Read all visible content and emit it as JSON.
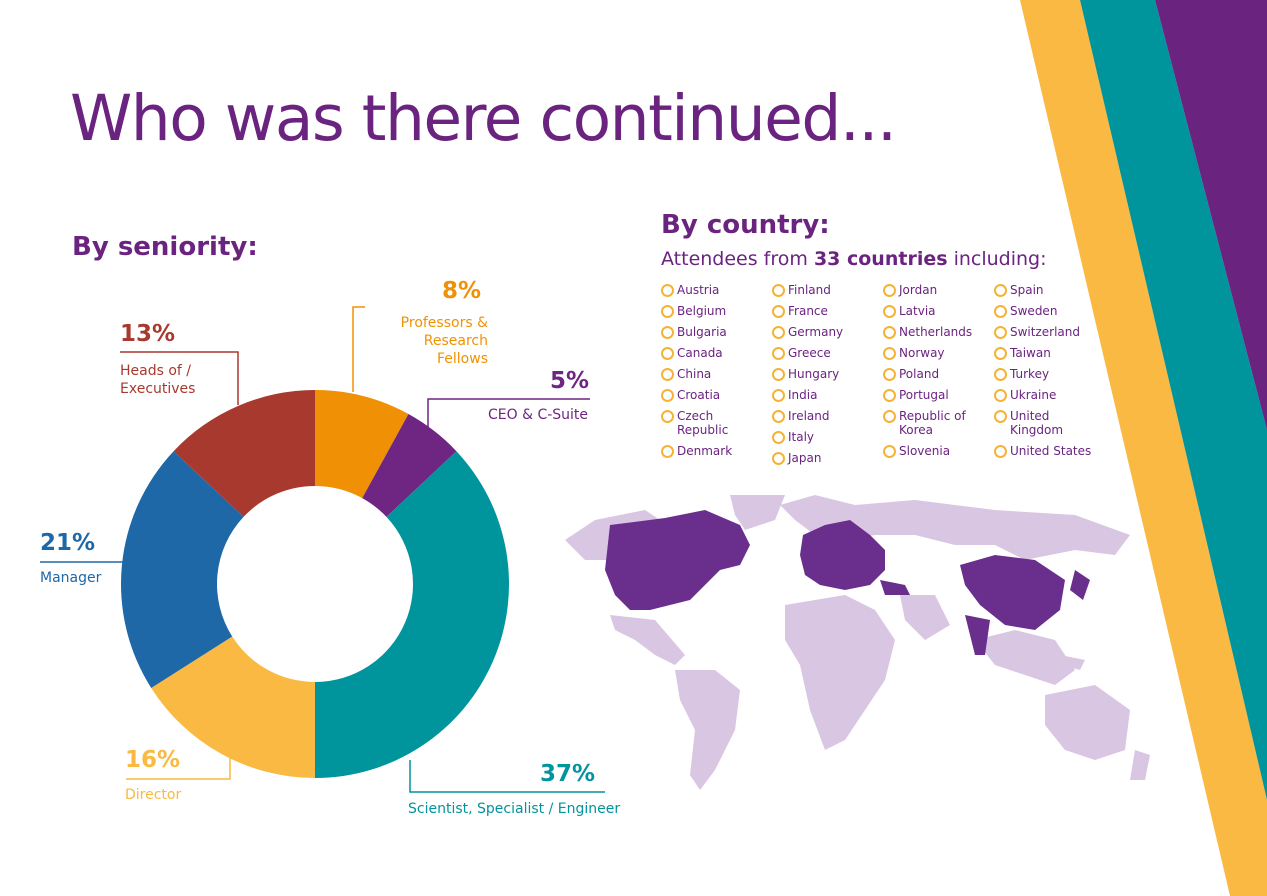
{
  "page": {
    "title": "Who was there continued...",
    "colors": {
      "purple": "#6b2380",
      "teal": "#00949c",
      "yellow": "#f9b942",
      "orange": "#f09105",
      "red": "#a8392e",
      "blue": "#1e68a8",
      "map_light": "#d9c6e2",
      "map_dark": "#6a2f8c"
    }
  },
  "seniority": {
    "heading": "By seniority:"
  },
  "chart_data": {
    "type": "pie",
    "donut": true,
    "title": "By seniority:",
    "slices": [
      {
        "label": "Professors & Research Fellows",
        "value": 8,
        "display": "8%",
        "color": "#f09105"
      },
      {
        "label": "CEO & C-Suite",
        "value": 5,
        "display": "5%",
        "color": "#6f2582"
      },
      {
        "label": "Scientist, Specialist / Engineer",
        "value": 37,
        "display": "37%",
        "color": "#00949c"
      },
      {
        "label": "Director",
        "value": 16,
        "display": "16%",
        "color": "#f9b942"
      },
      {
        "label": "Manager",
        "value": 21,
        "display": "21%",
        "color": "#1e68a8"
      },
      {
        "label": "Heads of / Executives",
        "value": 13,
        "display": "13%",
        "color": "#a8392e"
      }
    ]
  },
  "country": {
    "heading": "By country:",
    "subtitle_pre": "Attendees from ",
    "subtitle_bold": "33 countries",
    "subtitle_post": " including:",
    "columns": [
      [
        "Austria",
        "Belgium",
        "Bulgaria",
        "Canada",
        "China",
        "Croatia",
        "Czech\nRepublic",
        "Denmark"
      ],
      [
        "Finland",
        "France",
        "Germany",
        "Greece",
        "Hungary",
        "India",
        "Ireland",
        "Italy",
        "Japan"
      ],
      [
        "Jordan",
        "Latvia",
        "Netherlands",
        "Norway",
        "Poland",
        "Portugal",
        "Republic of\nKorea",
        "Slovenia"
      ],
      [
        "Spain",
        "Sweden",
        "Switzerland",
        "Taiwan",
        "Turkey",
        "Ukraine",
        "United\nKingdom",
        "United States"
      ]
    ]
  }
}
